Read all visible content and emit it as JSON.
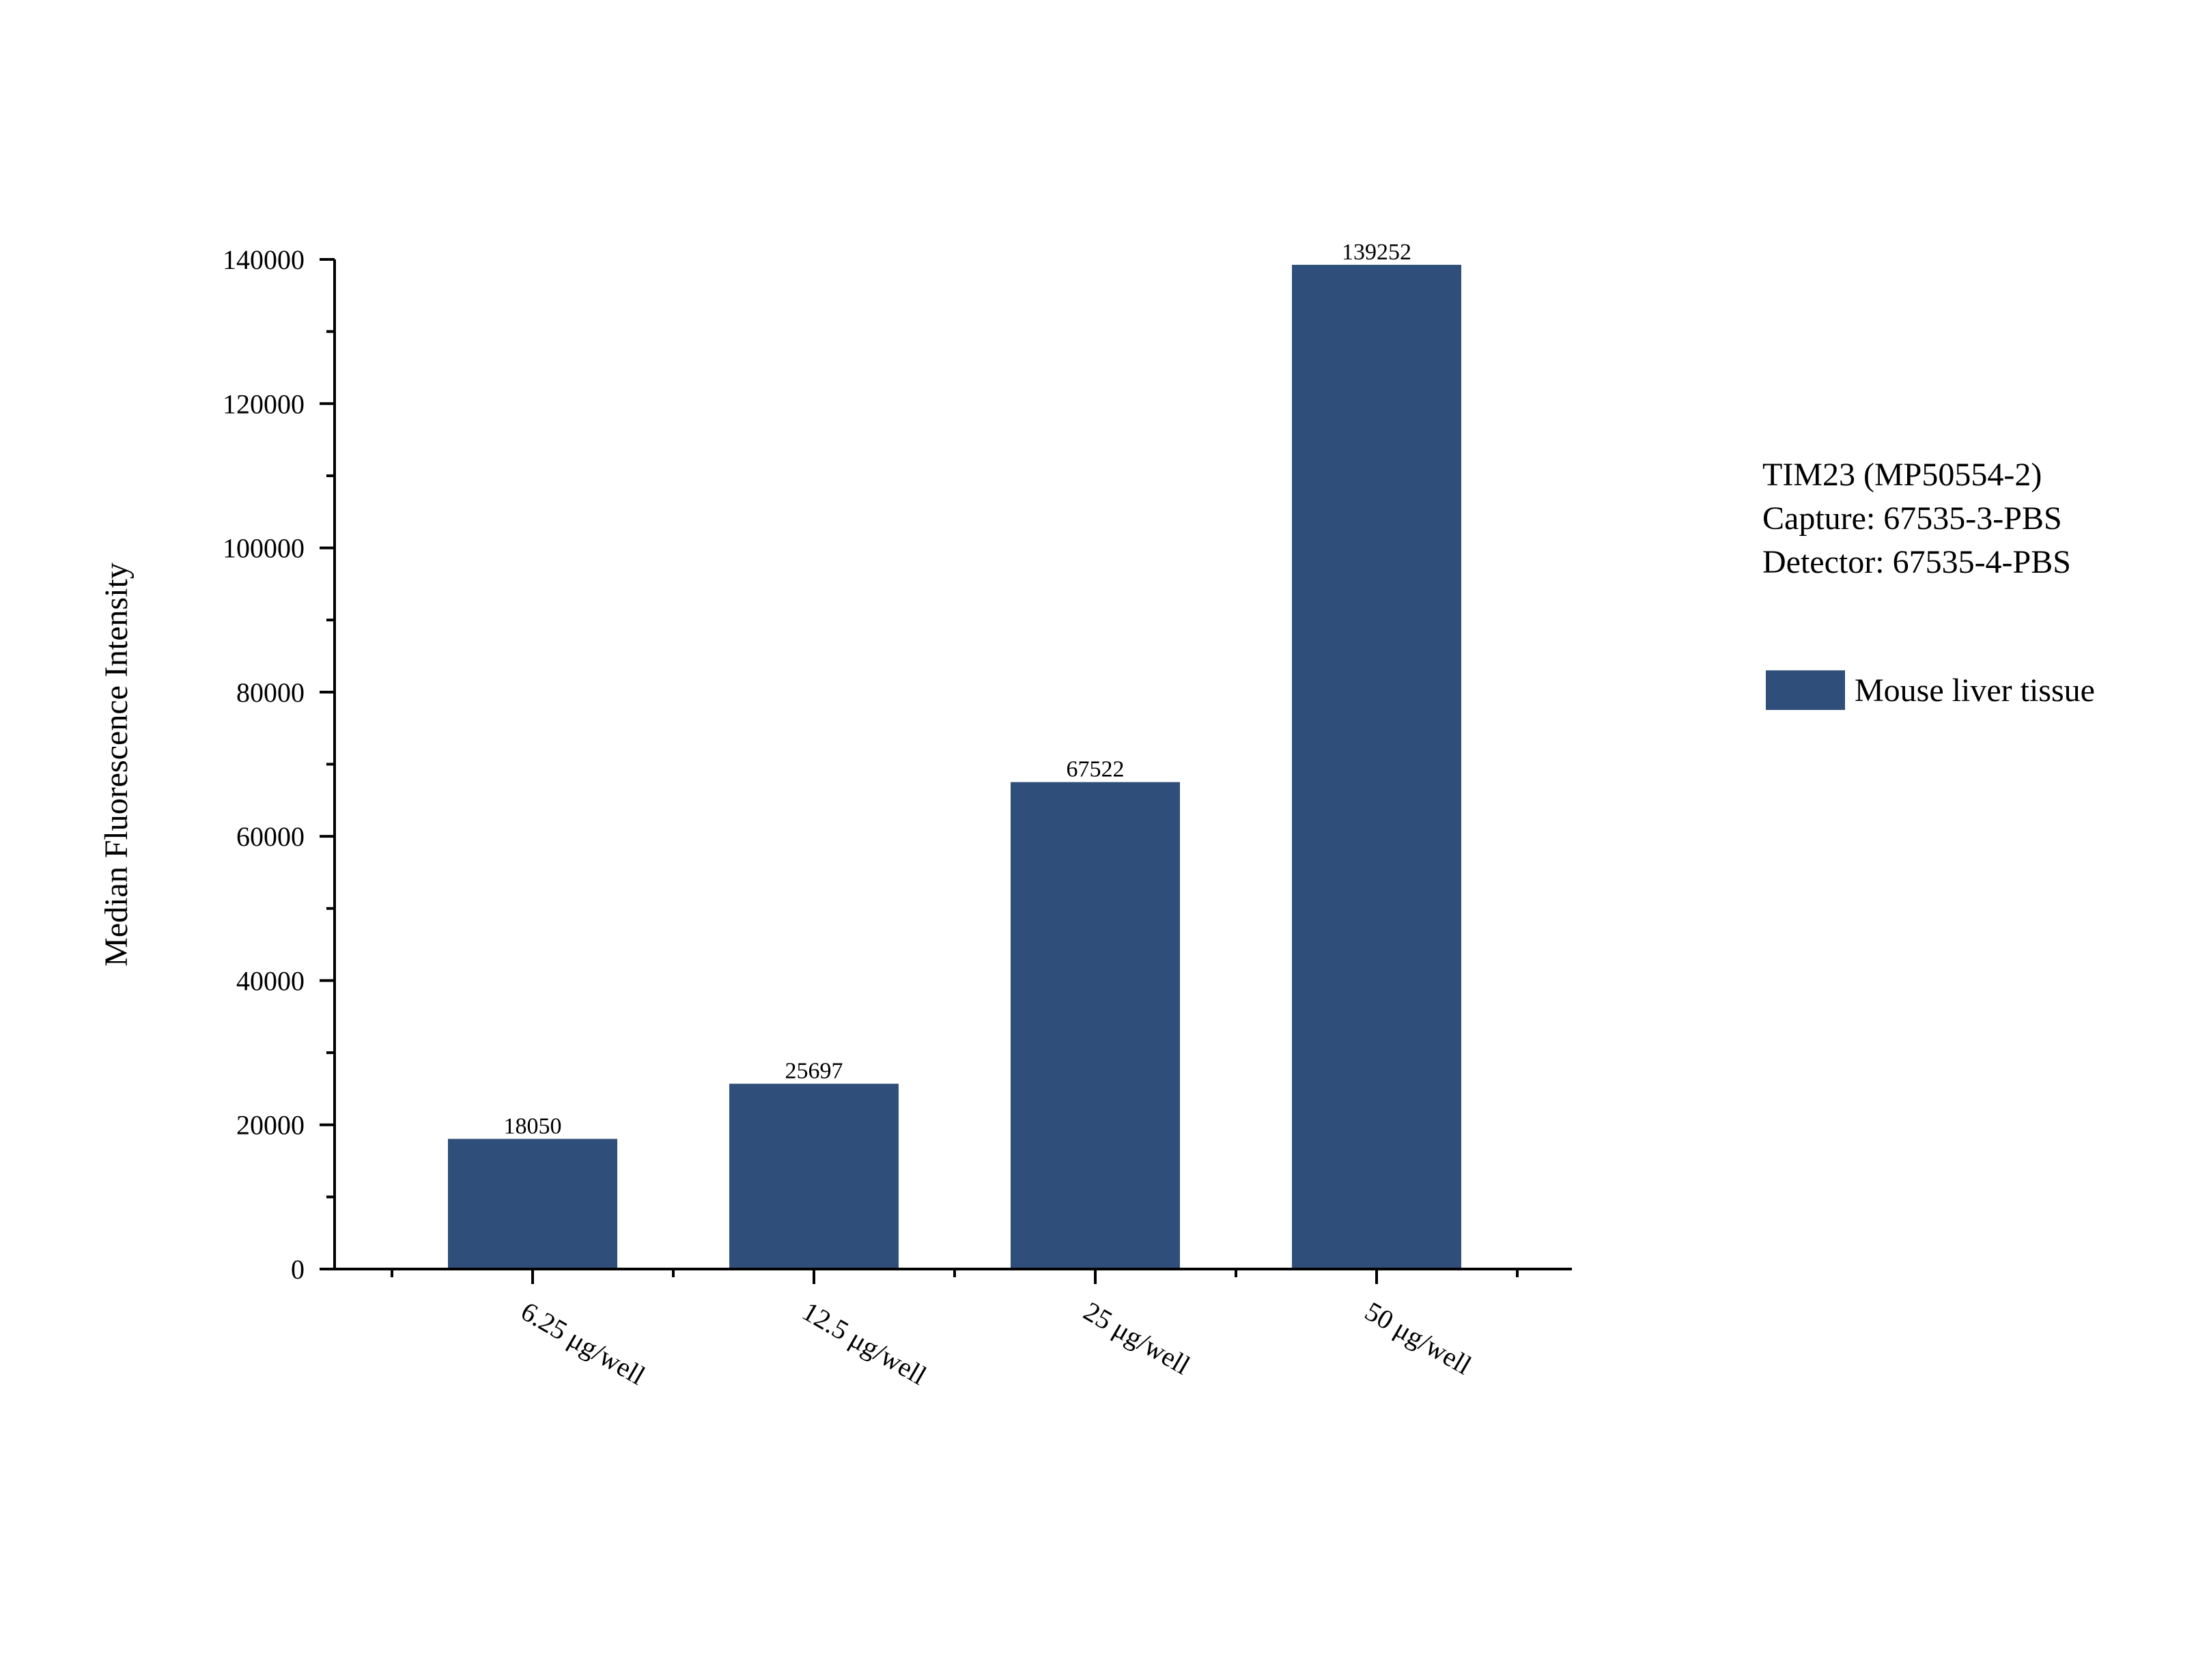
{
  "info": {
    "line1": "TIM23 (MP50554-2)",
    "line2": "Capture: 67535-3-PBS",
    "line3": "Detector: 67535-4-PBS"
  },
  "legend": {
    "label": "Mouse liver tissue",
    "color": "#2f4f7a"
  },
  "chart_data": {
    "type": "bar",
    "categories": [
      "6.25 μg/well",
      "12.5 μg/well",
      "25 μg/well",
      "50 μg/well"
    ],
    "series": [
      {
        "name": "Mouse liver tissue",
        "values": [
          18050,
          25697,
          67522,
          139252
        ],
        "color": "#2f4f7a"
      }
    ],
    "data_labels": [
      "18050",
      "25697",
      "67522",
      "139252"
    ],
    "title": "",
    "xlabel": "",
    "ylabel": "Median Fluorescence Intensity",
    "ylim": [
      0,
      140000
    ],
    "yticks": [
      0,
      20000,
      40000,
      60000,
      80000,
      100000,
      120000,
      140000
    ],
    "grid": false,
    "legend_position": "right"
  }
}
